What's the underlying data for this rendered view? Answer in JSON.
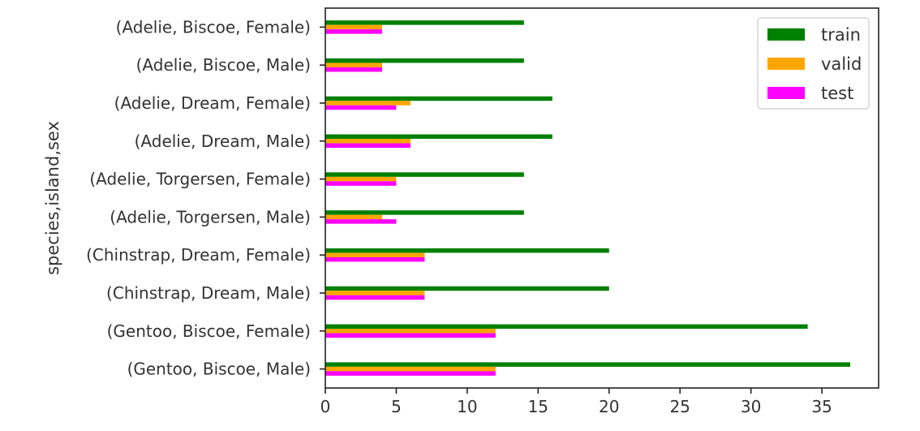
{
  "chart_data": {
    "type": "bar",
    "orientation": "horizontal",
    "ylabel": "species,island,sex",
    "xlabel": "",
    "xlim": [
      0,
      39
    ],
    "xticks": [
      0,
      5,
      10,
      15,
      20,
      25,
      30,
      35
    ],
    "grid": false,
    "legend_position": "top-right",
    "categories": [
      "(Adelie, Biscoe, Female)",
      "(Adelie, Biscoe, Male)",
      "(Adelie, Dream, Female)",
      "(Adelie, Dream, Male)",
      "(Adelie, Torgersen, Female)",
      "(Adelie, Torgersen, Male)",
      "(Chinstrap, Dream, Female)",
      "(Chinstrap, Dream, Male)",
      "(Gentoo, Biscoe, Female)",
      "(Gentoo, Biscoe, Male)"
    ],
    "series": [
      {
        "name": "train",
        "color": "#008000",
        "values": [
          14,
          14,
          16,
          16,
          14,
          14,
          20,
          20,
          34,
          37
        ]
      },
      {
        "name": "valid",
        "color": "#FFA500",
        "values": [
          4,
          4,
          6,
          6,
          5,
          4,
          7,
          7,
          12,
          12
        ]
      },
      {
        "name": "test",
        "color": "#FF00FF",
        "values": [
          4,
          4,
          5,
          6,
          5,
          5,
          7,
          7,
          12,
          12
        ]
      }
    ]
  }
}
